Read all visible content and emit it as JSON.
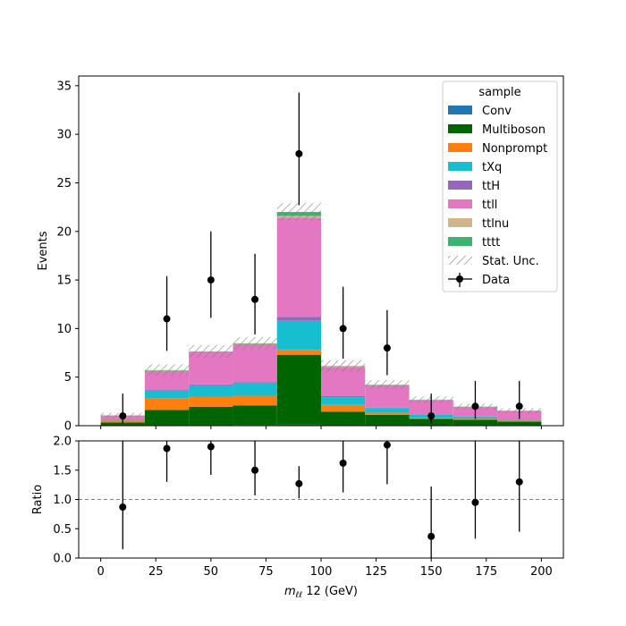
{
  "chart_data": [
    {
      "type": "bar",
      "stacked": true,
      "bin_edges": [
        0,
        20,
        40,
        60,
        80,
        100,
        120,
        140,
        160,
        180,
        200
      ],
      "ylabel": "Events",
      "ylim": [
        0,
        36
      ],
      "yticks": [
        0,
        5,
        10,
        15,
        20,
        25,
        30,
        35
      ],
      "grid": false,
      "legend": {
        "title": "sample",
        "placement": "top-right",
        "entries": [
          "Conv",
          "Multiboson",
          "Nonprompt",
          "tXq",
          "ttH",
          "ttll",
          "ttlnu",
          "tttt",
          "Stat. Unc.",
          "Data"
        ]
      },
      "series": [
        {
          "name": "Conv",
          "color": "#1f77b4",
          "values": [
            0.02,
            0.02,
            0.05,
            0.08,
            0.1,
            0.04,
            0.02,
            0.01,
            0.01,
            0.01
          ]
        },
        {
          "name": "Multiboson",
          "color": "#006400",
          "values": [
            0.3,
            1.6,
            1.9,
            2.0,
            7.2,
            1.4,
            1.1,
            0.7,
            0.6,
            0.4
          ]
        },
        {
          "name": "Nonprompt",
          "color": "#ff7f0e",
          "values": [
            0.2,
            1.2,
            1.0,
            1.0,
            0.5,
            0.7,
            0.2,
            0.1,
            0.1,
            0.1
          ]
        },
        {
          "name": "tXq",
          "color": "#17becf",
          "values": [
            0.1,
            0.8,
            1.2,
            1.3,
            3.0,
            0.8,
            0.5,
            0.3,
            0.2,
            0.1
          ]
        },
        {
          "name": "ttH",
          "color": "#9467bd",
          "values": [
            0.02,
            0.1,
            0.1,
            0.1,
            0.4,
            0.1,
            0.05,
            0.03,
            0.02,
            0.02
          ]
        },
        {
          "name": "ttll",
          "color": "#e377c2",
          "values": [
            0.4,
            1.9,
            3.3,
            3.9,
            10.2,
            3.0,
            2.3,
            1.5,
            1.0,
            0.9
          ]
        },
        {
          "name": "ttlnu",
          "color": "#d2b48c",
          "values": [
            0.02,
            0.05,
            0.05,
            0.05,
            0.2,
            0.05,
            0.03,
            0.02,
            0.02,
            0.01
          ]
        },
        {
          "name": "tttt",
          "color": "#3cb371",
          "values": [
            0.01,
            0.05,
            0.05,
            0.05,
            0.4,
            0.05,
            0.03,
            0.02,
            0.02,
            0.01
          ]
        }
      ],
      "stat_unc": [
        0.25,
        0.6,
        0.65,
        0.65,
        0.9,
        0.6,
        0.45,
        0.35,
        0.3,
        0.25
      ],
      "data": {
        "name": "Data",
        "x": [
          10,
          30,
          50,
          70,
          90,
          110,
          130,
          150,
          170,
          190
        ],
        "y": [
          1,
          11,
          15,
          13,
          28,
          10,
          8,
          1,
          2,
          2
        ],
        "yerr_low": [
          0.8,
          3.3,
          3.9,
          3.6,
          5.3,
          3.1,
          2.8,
          0.8,
          1.3,
          1.3
        ],
        "yerr_high": [
          2.3,
          4.4,
          5.0,
          4.7,
          6.3,
          4.3,
          3.9,
          2.3,
          2.6,
          2.6
        ]
      }
    },
    {
      "type": "scatter",
      "xlabel": "m_{ℓℓ} 12 (GeV)",
      "xlabel_main": "m",
      "xlabel_sub": "ℓℓ",
      "xlabel_rest": " 12 (GeV)",
      "ylabel": "Ratio",
      "xlim": [
        -10,
        210
      ],
      "ylim": [
        0,
        2
      ],
      "xticks": [
        0,
        25,
        50,
        75,
        100,
        125,
        150,
        175,
        200
      ],
      "yticks": [
        0.0,
        0.5,
        1.0,
        1.5,
        2.0
      ],
      "reference_line": 1.0,
      "x": [
        10,
        30,
        50,
        70,
        90,
        110,
        130,
        150,
        170,
        190
      ],
      "y": [
        0.87,
        1.87,
        1.9,
        1.5,
        1.27,
        1.62,
        1.93,
        0.37,
        0.95,
        1.3
      ],
      "yerr_low": [
        0.72,
        0.57,
        0.48,
        0.43,
        0.25,
        0.5,
        0.67,
        0.37,
        0.62,
        0.85
      ],
      "yerr_high": [
        1.3,
        0.13,
        0.1,
        0.5,
        0.3,
        0.38,
        0.07,
        0.85,
        1.05,
        0.7
      ]
    }
  ]
}
